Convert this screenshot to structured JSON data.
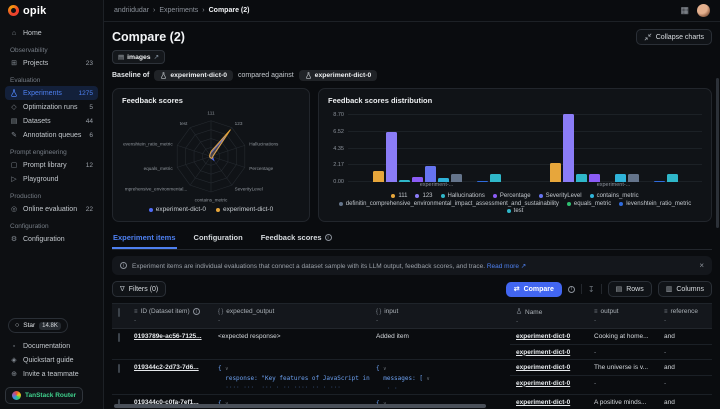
{
  "brand": {
    "name": "opik"
  },
  "topbar": {
    "breadcrumb": [
      "andriidudar",
      "Experiments",
      "Compare (2)"
    ]
  },
  "page": {
    "title": "Compare (2)",
    "collapse_charts": "Collapse charts",
    "dataset_tag": "images",
    "baseline_prefix": "Baseline of",
    "baseline_experiment": "experiment-dict-0",
    "compared_text": "compared against",
    "compared_experiment": "experiment-dict-0"
  },
  "sidebar": {
    "home": "Home",
    "groups": [
      {
        "title": "Observability",
        "items": [
          {
            "label": "Projects",
            "count": "23"
          }
        ]
      },
      {
        "title": "Evaluation",
        "items": [
          {
            "label": "Experiments",
            "count": "1275"
          },
          {
            "label": "Optimization runs",
            "count": "5"
          },
          {
            "label": "Datasets",
            "count": "44"
          },
          {
            "label": "Annotation queues",
            "count": "6"
          }
        ]
      },
      {
        "title": "Prompt engineering",
        "items": [
          {
            "label": "Prompt library",
            "count": "12"
          },
          {
            "label": "Playground",
            "count": ""
          }
        ]
      },
      {
        "title": "Production",
        "items": [
          {
            "label": "Online evaluation",
            "count": "22"
          }
        ]
      },
      {
        "title": "Configuration",
        "items": [
          {
            "label": "Configuration",
            "count": ""
          }
        ]
      }
    ],
    "footer": {
      "star": "Star",
      "star_count": "14.8K",
      "docs": "Documentation",
      "quickstart": "Quickstart guide",
      "invite": "Invite a teammate",
      "tanstack": "TanStack Router"
    }
  },
  "charts": {
    "radar": {
      "title": "Feedback scores",
      "type": "radar",
      "axes": [
        "111",
        "123",
        "Hallucinations",
        "Percentage",
        "SeverityLevel",
        "contains_metric",
        "mprehensive_environmental...",
        "equals_metric",
        "evenshtein_ratio_metric",
        "test"
      ],
      "series": [
        {
          "name": "experiment-dict-0",
          "color": "#4f6bf5",
          "values": [
            0.1,
            0.72,
            0.06,
            0.05,
            0.13,
            0.05,
            0.04,
            0.04,
            0.04,
            0.05
          ]
        },
        {
          "name": "experiment-dict-0",
          "color": "#e7a63b",
          "values": [
            0.14,
            0.93,
            0.07,
            0.05,
            0.06,
            0.05,
            0.04,
            0.04,
            0.04,
            0.06
          ]
        }
      ]
    },
    "bars": {
      "title": "Feedback scores distribution",
      "type": "bar",
      "y_ticks": [
        "8.70",
        "6.52",
        "4.35",
        "2.17",
        "0.00"
      ],
      "y_max": 9.28,
      "groups": [
        {
          "label": "experiment-...",
          "values": [
            1.5,
            6.52,
            0.3,
            0.65,
            2.05,
            0.5,
            1.0,
            0,
            0.12,
            1.0
          ]
        },
        {
          "label": "experiment-...",
          "values": [
            2.45,
            8.85,
            1.0,
            1.0,
            0,
            1.0,
            1.0,
            0,
            0.12,
            1.0
          ]
        }
      ],
      "metrics": [
        {
          "name": "111",
          "color": "#e7a63b"
        },
        {
          "name": "123",
          "color": "#8b7cf7"
        },
        {
          "name": "Hallucinations",
          "color": "#2fb7c9"
        },
        {
          "name": "Percentage",
          "color": "#8b5cf6"
        },
        {
          "name": "SeverityLevel",
          "color": "#6674f0"
        },
        {
          "name": "contains_metric",
          "color": "#2fb3d9"
        },
        {
          "name": "definitin_comprehensive_environmental_impact_assessment_and_sustainability",
          "color": "#64748b"
        },
        {
          "name": "equals_metric",
          "color": "#2fbf71"
        },
        {
          "name": "levenshtein_ratio_metric",
          "color": "#2f6bdd"
        },
        {
          "name": "test",
          "color": "#2fb7c9"
        }
      ]
    }
  },
  "tabs": {
    "items": [
      "Experiment items",
      "Configuration",
      "Feedback scores"
    ]
  },
  "banner": {
    "text": "Experiment items are individual evaluations that connect a dataset sample with its LLM output, feedback scores, and trace.",
    "link": "Read more"
  },
  "toolbar": {
    "filters": "Filters (0)",
    "compare": "Compare",
    "rows": "Rows",
    "columns": "Columns"
  },
  "table": {
    "headers": {
      "id": "ID (Dataset item)",
      "expected_output": "expected_output",
      "input": "input",
      "name": "Name",
      "output": "output",
      "reference": "reference",
      "sub": "-"
    },
    "rows": [
      {
        "id": "0193789e-ac56-7125...",
        "expected_output": "<expected response>",
        "input": "Added item",
        "names": [
          "experiment-dict-0",
          "experiment-dict-0"
        ],
        "outputs": [
          "Cooking at home...",
          "-"
        ],
        "references": [
          "and",
          "-"
        ]
      },
      {
        "id": "019344c2-2d73-7d6...",
        "expected_open": "{",
        "expected_line": "  response: \"Key features of JavaScript include:",
        "expected_clipped": "  ···· ···  ··· · ·· ···· ·· · ···",
        "input_open": "{",
        "input_line": "  messages: [",
        "input_clipped": "   · ·",
        "names": [
          "experiment-dict-0",
          "experiment-dict-0"
        ],
        "outputs": [
          "The universe is v...",
          "-"
        ],
        "references": [
          "and",
          "-"
        ]
      },
      {
        "id": "019344c0-c0fa-7ef1...",
        "expected_open": "{",
        "input_open": "{",
        "names": [
          "experiment-dict-0"
        ],
        "outputs": [
          "A positive minds..."
        ],
        "references": [
          "and"
        ]
      }
    ]
  }
}
